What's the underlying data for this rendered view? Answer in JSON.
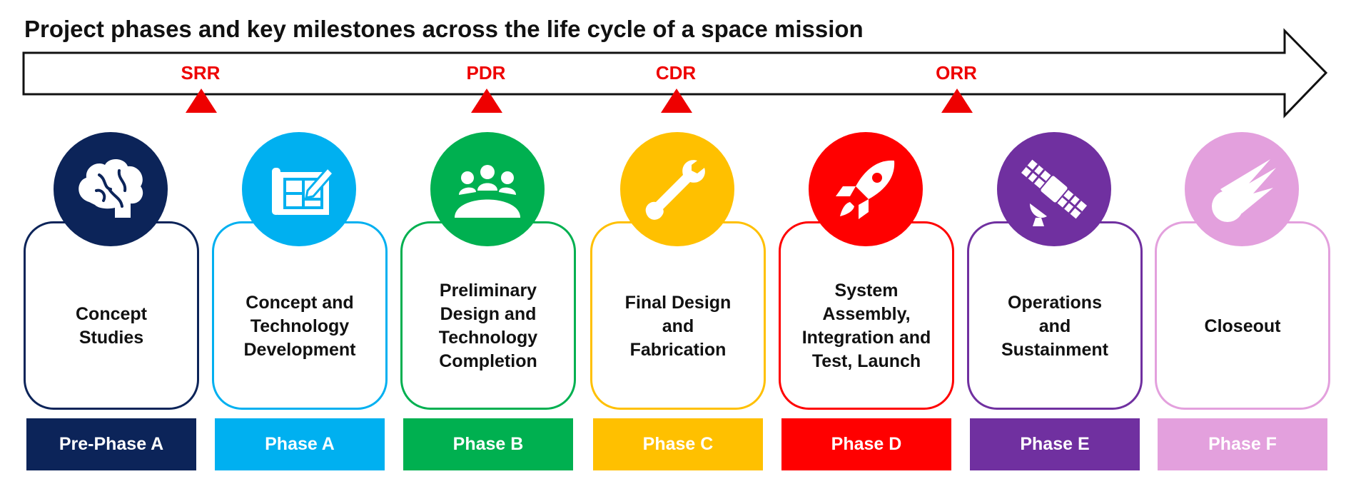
{
  "title": "Project phases and key milestones across the life cycle of a space mission",
  "colors": {
    "milestone": "#ee0000",
    "pre_phase_a": "#0c2459",
    "phase_a": "#00b0f0",
    "phase_b": "#00b050",
    "phase_c": "#ffc000",
    "phase_d": "#ff0000",
    "phase_e": "#7030a0",
    "phase_f": "#e3a0dd"
  },
  "milestones": [
    {
      "label": "SRR"
    },
    {
      "label": "PDR"
    },
    {
      "label": "CDR"
    },
    {
      "label": "ORR"
    }
  ],
  "phases": [
    {
      "label": "Pre-Phase A",
      "description": [
        "Concept",
        "Studies"
      ],
      "icon": "brain-icon"
    },
    {
      "label": "Phase A",
      "description": [
        "Concept and",
        "Technology",
        "Development"
      ],
      "icon": "blueprint-icon"
    },
    {
      "label": "Phase B",
      "description": [
        "Preliminary",
        "Design and",
        "Technology",
        "Completion"
      ],
      "icon": "meeting-icon"
    },
    {
      "label": "Phase C",
      "description": [
        "Final Design",
        "and",
        "Fabrication"
      ],
      "icon": "wrench-icon"
    },
    {
      "label": "Phase D",
      "description": [
        "System",
        "Assembly,",
        "Integration and",
        "Test, Launch"
      ],
      "icon": "rocket-icon"
    },
    {
      "label": "Phase E",
      "description": [
        "Operations",
        "and",
        "Sustainment"
      ],
      "icon": "satellite-icon"
    },
    {
      "label": "Phase F",
      "description": [
        "Closeout"
      ],
      "icon": "meteor-icon"
    }
  ]
}
